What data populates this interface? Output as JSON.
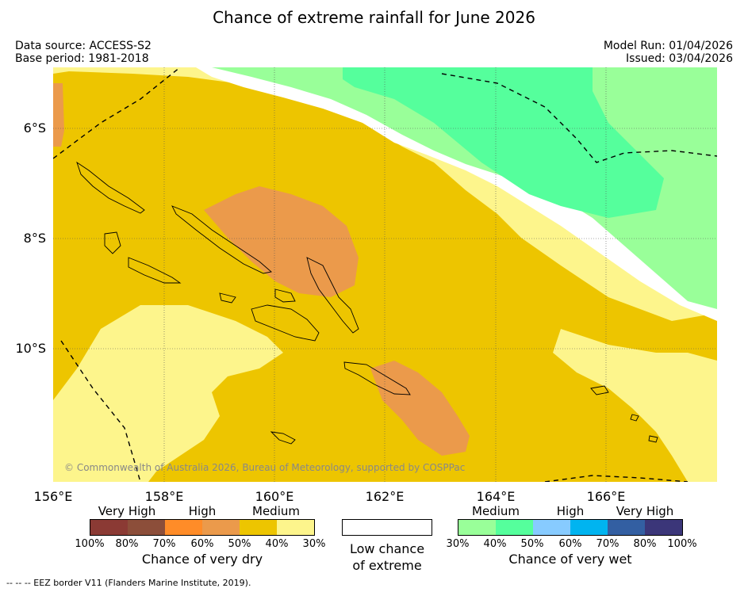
{
  "title": "Chance of extreme rainfall for June 2026",
  "meta": {
    "data_source": "Data source: ACCESS-S2",
    "base_period": "Base period: 1981-2018",
    "model_run": "Model Run: 01/04/2026",
    "issued": "Issued: 03/04/2026"
  },
  "map": {
    "lat_labels": [
      "6°S",
      "8°S",
      "10°S"
    ],
    "lon_labels": [
      "156°E",
      "158°E",
      "160°E",
      "162°E",
      "164°E",
      "166°E"
    ],
    "copyright": "© Commonwealth of Australia 2026, Bureau of Meteorology, supported by COSPPac"
  },
  "legend": {
    "dry": {
      "categories": [
        "Very High",
        "High",
        "Medium"
      ],
      "ticks": [
        "100%",
        "80%",
        "70%",
        "60%",
        "50%",
        "40%",
        "30%"
      ],
      "title": "Chance of very dry",
      "colors": [
        "#8b3a34",
        "#8c4e3a",
        "#ff8c28",
        "#eb9a4b",
        "#edc500",
        "#fdf58c"
      ]
    },
    "low": {
      "line1": "Low chance",
      "line2": "of extreme"
    },
    "wet": {
      "categories": [
        "Medium",
        "High",
        "Very High"
      ],
      "ticks": [
        "30%",
        "40%",
        "50%",
        "60%",
        "70%",
        "80%",
        "100%"
      ],
      "title": "Chance of very wet",
      "colors": [
        "#99ff99",
        "#55ff9c",
        "#87cbff",
        "#00b4f0",
        "#335fa2",
        "#3b3679"
      ]
    }
  },
  "colors": {
    "medium_dry": "#edc500",
    "low_dry": "#fdf58c",
    "high_dry": "#eb9a4b",
    "low_wet": "#99ff99",
    "medium_wet": "#55ff9c"
  },
  "footer": "--  --  -- EEZ border V11 (Flanders Marine Institute, 2019)."
}
